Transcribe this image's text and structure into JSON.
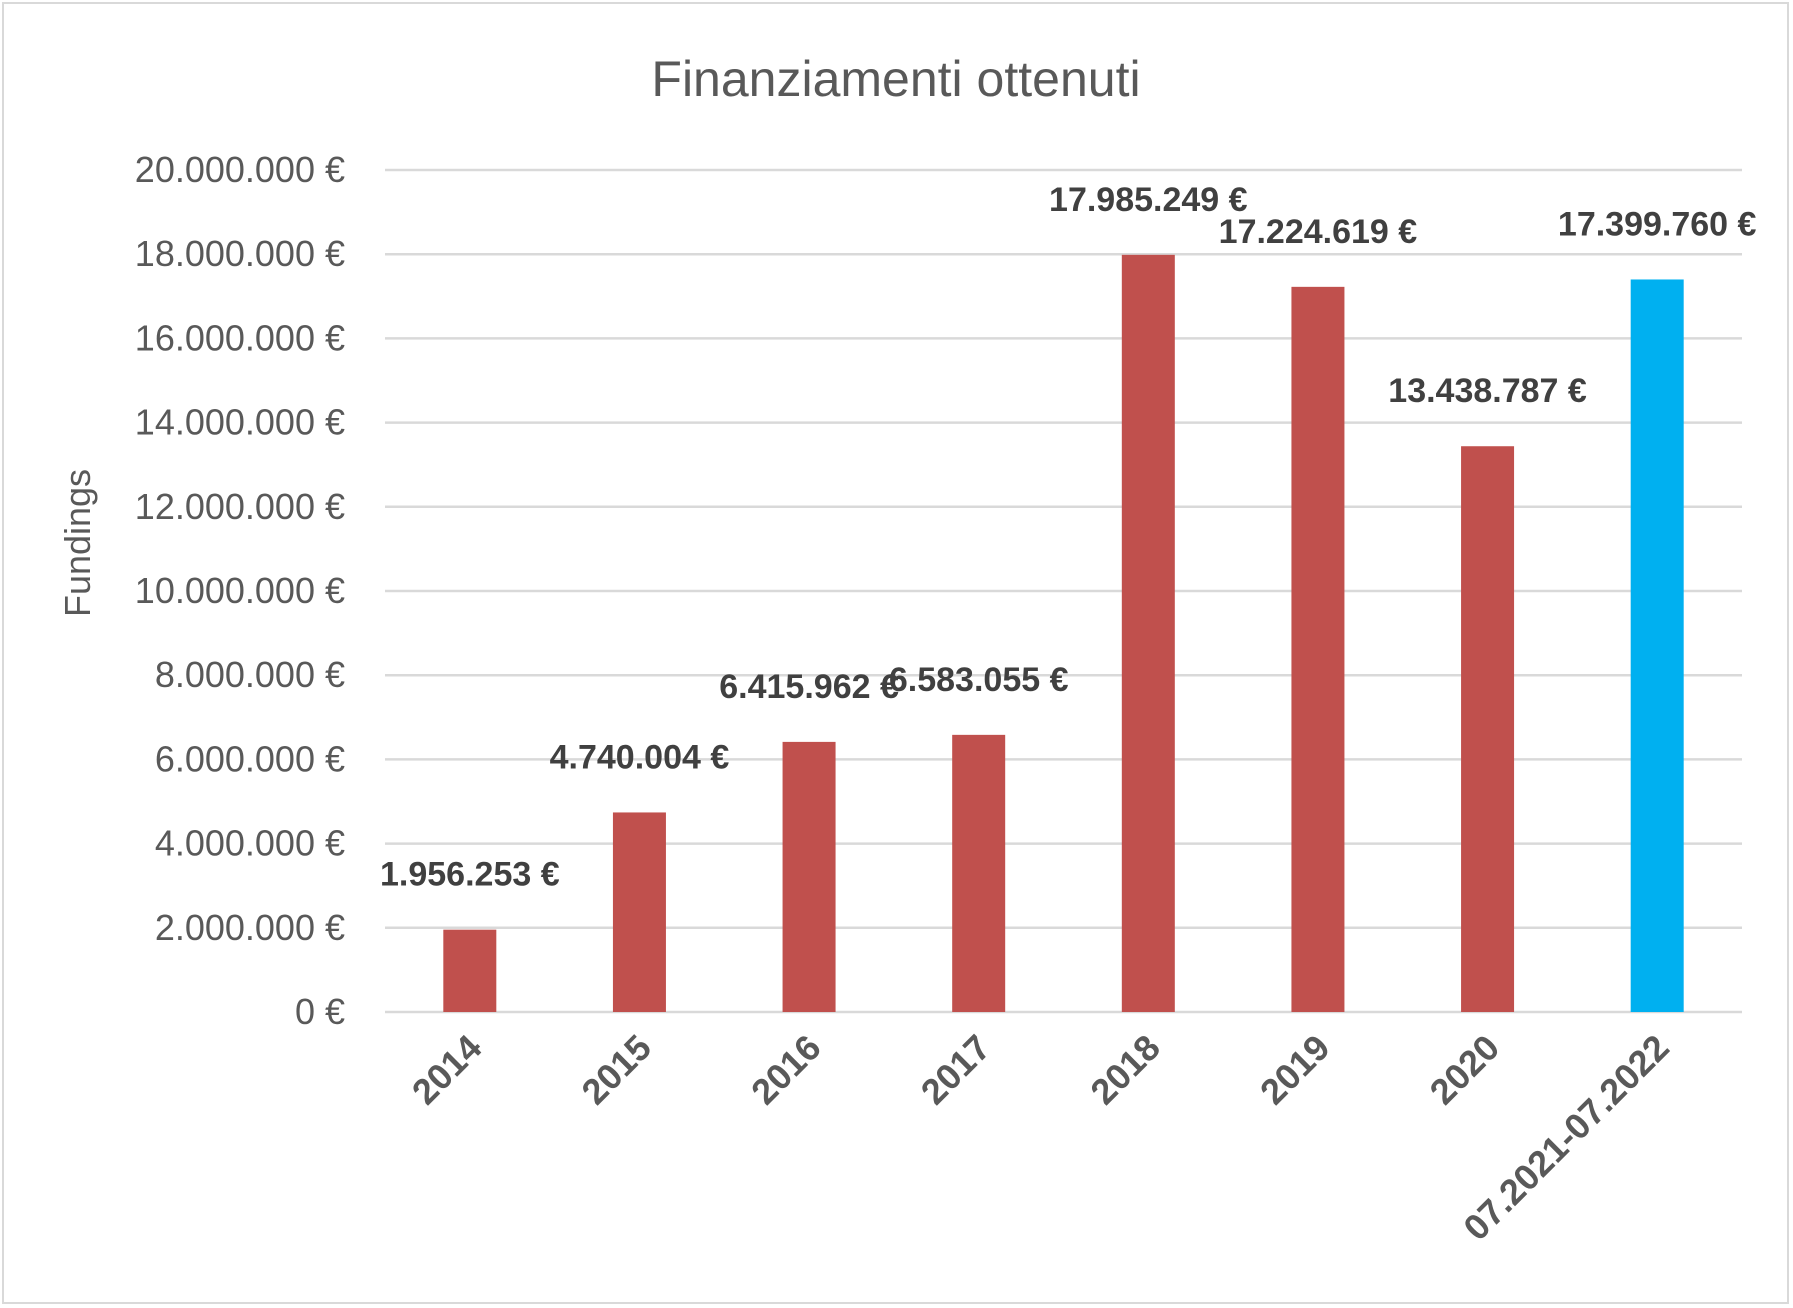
{
  "chart_data": {
    "type": "bar",
    "title": "Finanziamenti ottenuti",
    "xlabel": "",
    "ylabel": "Fundings",
    "categories": [
      "2014",
      "2015",
      "2016",
      "2017",
      "2018",
      "2019",
      "2020",
      "07.2021-07.2022"
    ],
    "values": [
      1956253,
      4740004,
      6415962,
      6583055,
      17985249,
      17224619,
      13438787,
      17399760
    ],
    "data_labels": [
      "1.956.253 €",
      "4.740.004 €",
      "6.415.962 €",
      "6.583.055 €",
      "17.985.249 €",
      "17.224.619 €",
      "13.438.787 €",
      "17.399.760 €"
    ],
    "bar_colors": [
      "#c0504d",
      "#c0504d",
      "#c0504d",
      "#c0504d",
      "#c0504d",
      "#c0504d",
      "#c0504d",
      "#00b0f0"
    ],
    "ylim": [
      0,
      20000000
    ],
    "yticks": [
      0,
      2000000,
      4000000,
      6000000,
      8000000,
      10000000,
      12000000,
      14000000,
      16000000,
      18000000,
      20000000
    ],
    "ytick_labels": [
      "0 €",
      "2.000.000 €",
      "4.000.000 €",
      "6.000.000 €",
      "8.000.000 €",
      "10.000.000 €",
      "12.000.000 €",
      "14.000.000 €",
      "16.000.000 €",
      "18.000.000 €",
      "20.000.000 €"
    ],
    "grid": true,
    "legend": "none"
  }
}
